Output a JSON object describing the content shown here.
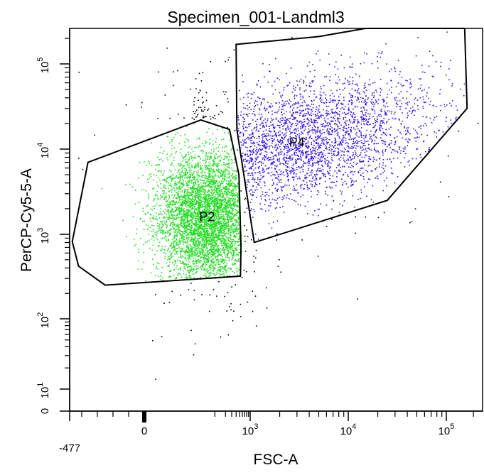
{
  "chart_data": {
    "type": "scatter",
    "title": "Specimen_001-Landml3",
    "xlabel": "FSC-A",
    "ylabel": "PerCP-Cy5-5-A",
    "x_scale": "biexponential",
    "y_scale": "biexponential",
    "xlim": [
      -477,
      262144
    ],
    "ylim": [
      0,
      262144
    ],
    "x_ticks": [
      {
        "value": -477,
        "base": "-477",
        "exp": ""
      },
      {
        "value": 0,
        "base": "0",
        "exp": ""
      },
      {
        "value": 1000,
        "base": "10",
        "exp": "3"
      },
      {
        "value": 10000,
        "base": "10",
        "exp": "4"
      },
      {
        "value": 100000,
        "base": "10",
        "exp": "5"
      }
    ],
    "y_ticks": [
      {
        "value": 0,
        "base": "0",
        "exp": ""
      },
      {
        "value": 10,
        "base": "10",
        "exp": "1"
      },
      {
        "value": 100,
        "base": "10",
        "exp": "2"
      },
      {
        "value": 1000,
        "base": "10",
        "exp": "3"
      },
      {
        "value": 10000,
        "base": "10",
        "exp": "4"
      },
      {
        "value": 100000,
        "base": "10",
        "exp": "5"
      }
    ],
    "populations": [
      {
        "name": "P2",
        "color": "#22dd22",
        "approx_events": 5200,
        "center_fsc": 60,
        "center_percp": 1600
      },
      {
        "name": "P4",
        "color": "#3311ee",
        "approx_events": 3400,
        "center_fsc": 3000,
        "center_percp": 12000
      },
      {
        "name": "ungated",
        "color": "#000000",
        "approx_events": 900
      }
    ],
    "gates": [
      {
        "name": "P2",
        "vertices": [
          [
            -360,
            7000
          ],
          [
            40,
            22000
          ],
          [
            260,
            17000
          ],
          [
            480,
            5000
          ],
          [
            550,
            700
          ],
          [
            530,
            320
          ],
          [
            -250,
            250
          ],
          [
            -420,
            420
          ],
          [
            -460,
            820
          ]
        ]
      },
      {
        "name": "P4",
        "vertices": [
          [
            400,
            170000
          ],
          [
            5000,
            210000
          ],
          [
            15000,
            262144
          ],
          [
            160000,
            262144
          ],
          [
            170000,
            30000
          ],
          [
            25000,
            2500
          ],
          [
            1100,
            800
          ],
          [
            420,
            17000
          ]
        ]
      }
    ],
    "grid": false
  }
}
